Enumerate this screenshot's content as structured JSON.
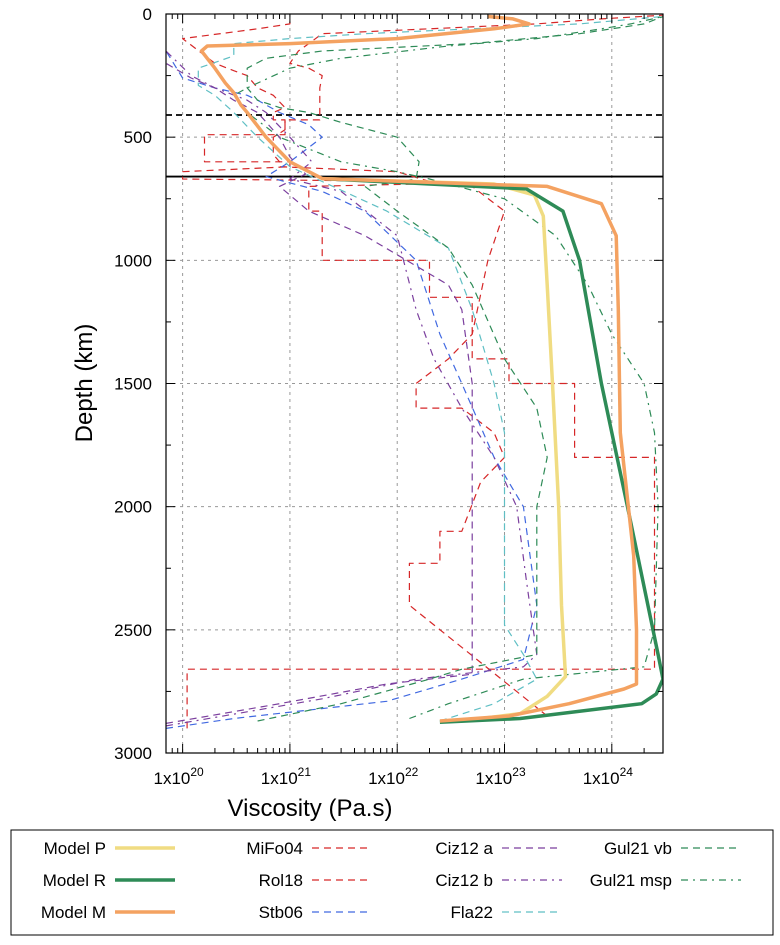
{
  "chart_data": {
    "type": "line",
    "xlabel": "Viscosity (Pa.s)",
    "ylabel": "Depth (km)",
    "xscale": "log",
    "xlim": [
      7e+19,
      3e+24
    ],
    "ylim": [
      3000,
      0
    ],
    "xticks": [
      {
        "value": 1e+20,
        "mantissa": "1x10",
        "exp": "20"
      },
      {
        "value": 1e+21,
        "mantissa": "1x10",
        "exp": "21"
      },
      {
        "value": 1e+22,
        "mantissa": "1x10",
        "exp": "22"
      },
      {
        "value": 1e+23,
        "mantissa": "1x10",
        "exp": "23"
      },
      {
        "value": 1e+24,
        "mantissa": "1x10",
        "exp": "24"
      }
    ],
    "yticks": [
      {
        "value": 0,
        "label": "0"
      },
      {
        "value": 500,
        "label": "500"
      },
      {
        "value": 1000,
        "label": "1000"
      },
      {
        "value": 1500,
        "label": "1500"
      },
      {
        "value": 2000,
        "label": "2000"
      },
      {
        "value": 2500,
        "label": "2500"
      },
      {
        "value": 3000,
        "label": "3000"
      }
    ],
    "grid": true,
    "reference_lines": [
      {
        "depth": 410,
        "style": "dashed",
        "color": "#000000"
      },
      {
        "depth": 660,
        "style": "solid",
        "color": "#000000"
      }
    ],
    "legend": {
      "placement": "bottom",
      "columns": 4
    },
    "series": [
      {
        "name": "Model P",
        "color": "#f0dc82",
        "width": 3.5,
        "dash": "none",
        "points": [
          [
            4e+22,
            2870
          ],
          [
            1.4e+23,
            2840
          ],
          [
            2.5e+23,
            2770
          ],
          [
            3.7e+23,
            2690
          ],
          [
            3.4e+23,
            2400
          ],
          [
            3.2e+23,
            2000
          ],
          [
            2.8e+23,
            1500
          ],
          [
            2.5e+23,
            1100
          ],
          [
            2.3e+23,
            820
          ],
          [
            1.9e+23,
            735
          ],
          [
            8e+22,
            690
          ],
          [
            2e+21,
            668
          ]
        ]
      },
      {
        "name": "Model R",
        "color": "#2e8b57",
        "width": 3.5,
        "dash": "none",
        "points": [
          [
            2.5e+22,
            2875
          ],
          [
            1.4e+23,
            2860
          ],
          [
            1.9e+24,
            2800
          ],
          [
            2.6e+24,
            2760
          ],
          [
            3e+24,
            2700
          ],
          [
            2.7e+24,
            2600
          ],
          [
            1.4e+24,
            2000
          ],
          [
            8e+23,
            1500
          ],
          [
            5e+23,
            1000
          ],
          [
            3.5e+23,
            800
          ],
          [
            1.6e+23,
            710
          ],
          [
            2e+22,
            690
          ],
          [
            2e+21,
            668
          ]
        ]
      },
      {
        "name": "Model M",
        "color": "#f4a261",
        "width": 3.5,
        "dash": "none",
        "points": [
          [
            2.5e+22,
            2870
          ],
          [
            1.1e+23,
            2850
          ],
          [
            4e+23,
            2800
          ],
          [
            1.3e+24,
            2740
          ],
          [
            1.7e+24,
            2720
          ],
          [
            1.7e+24,
            2500
          ],
          [
            1.6e+24,
            2200
          ],
          [
            1.2e+24,
            1700
          ],
          [
            1.15e+24,
            1200
          ],
          [
            1.1e+24,
            900
          ],
          [
            8e+23,
            770
          ],
          [
            2.5e+23,
            700
          ],
          [
            2e+21,
            668
          ],
          [
            1e+21,
            600
          ],
          [
            6e+20,
            500
          ],
          [
            4e+20,
            400
          ],
          [
            3.5e+20,
            370
          ],
          [
            3e+20,
            320
          ],
          [
            2.5e+20,
            280
          ],
          [
            2e+20,
            220
          ],
          [
            1.5e+20,
            150
          ],
          [
            1.7e+20,
            130
          ],
          [
            1e+21,
            120
          ],
          [
            1e+22,
            100
          ],
          [
            8e+22,
            60
          ],
          [
            1.7e+23,
            40
          ],
          [
            1.2e+23,
            20
          ],
          [
            7e+22,
            10
          ]
        ]
      },
      {
        "name": "MiFo04",
        "color": "#d62728",
        "width": 1.2,
        "dash": "7,5",
        "points": [
          [
            1.1e+20,
            2900
          ],
          [
            1.1e+20,
            2660
          ],
          [
            1e+23,
            2660
          ],
          [
            2.5e+24,
            2660
          ],
          [
            2.5e+24,
            2480
          ],
          [
            2.5e+24,
            2000
          ],
          [
            2.5e+24,
            1800
          ],
          [
            4.5e+23,
            1800
          ],
          [
            4.5e+23,
            1500
          ],
          [
            1.1e+23,
            1500
          ],
          [
            1.1e+23,
            1400
          ],
          [
            5e+22,
            1400
          ],
          [
            5e+22,
            1150
          ],
          [
            2e+22,
            1150
          ],
          [
            2e+22,
            1000
          ],
          [
            2e+21,
            1000
          ],
          [
            2e+21,
            800
          ],
          [
            1.5e+21,
            800
          ],
          [
            1.5e+21,
            700
          ],
          [
            1.5e+22,
            690
          ],
          [
            2e+22,
            680
          ],
          [
            1e+22,
            640
          ],
          [
            8e+20,
            620
          ],
          [
            8e+20,
            600
          ],
          [
            7e+20,
            570
          ],
          [
            7e+20,
            500
          ],
          [
            9e+20,
            470
          ],
          [
            9e+20,
            430
          ],
          [
            7e+20,
            430
          ],
          [
            7e+20,
            400
          ],
          [
            9e+20,
            380
          ],
          [
            7e+20,
            330
          ],
          [
            5e+20,
            300
          ],
          [
            4e+20,
            250
          ],
          [
            3e+20,
            230
          ],
          [
            2e+20,
            200
          ],
          [
            1e+20,
            100
          ],
          [
            5e+20,
            60
          ],
          [
            1e+21,
            40
          ],
          [
            1e+21,
            20
          ]
        ]
      },
      {
        "name": "Rol18",
        "color": "#d62728",
        "width": 1.2,
        "dash": "7,5",
        "points": [
          [
            2.5e+23,
            2850
          ],
          [
            1.3e+22,
            2400
          ],
          [
            1.3e+22,
            2230
          ],
          [
            2.5e+22,
            2230
          ],
          [
            2.5e+22,
            2100
          ],
          [
            4e+22,
            2100
          ],
          [
            6e+22,
            1900
          ],
          [
            1e+23,
            1800
          ],
          [
            8e+22,
            1700
          ],
          [
            4e+22,
            1600
          ],
          [
            1.5e+22,
            1600
          ],
          [
            1.5e+22,
            1500
          ],
          [
            3e+22,
            1400
          ],
          [
            5e+22,
            1300
          ],
          [
            7e+22,
            1000
          ],
          [
            1e+23,
            800
          ],
          [
            5e+22,
            700
          ],
          [
            2e+22,
            680
          ],
          [
            1e+20,
            670
          ],
          [
            1e+20,
            640
          ],
          [
            1e+21,
            620
          ],
          [
            1e+21,
            600
          ],
          [
            1.6e+20,
            600
          ],
          [
            1.6e+20,
            490
          ],
          [
            9e+20,
            490
          ],
          [
            9e+20,
            430
          ],
          [
            1.9e+21,
            430
          ],
          [
            1.9e+21,
            300
          ],
          [
            2e+21,
            250
          ],
          [
            1.5e+21,
            220
          ],
          [
            1e+21,
            200
          ],
          [
            1.2e+21,
            150
          ],
          [
            1.5e+21,
            120
          ],
          [
            2e+21,
            80
          ],
          [
            2e+22,
            60
          ],
          [
            2e+23,
            40
          ],
          [
            8e+23,
            20
          ],
          [
            3e+24,
            5
          ]
        ]
      },
      {
        "name": "Stb06",
        "color": "#4169e1",
        "width": 1.2,
        "dash": "7,5",
        "points": [
          [
            7e+19,
            2900
          ],
          [
            3e+20,
            2860
          ],
          [
            8e+21,
            2790
          ],
          [
            4e+22,
            2700
          ],
          [
            1.5e+23,
            2620
          ],
          [
            2e+23,
            2400
          ],
          [
            1.5e+23,
            2000
          ],
          [
            8e+22,
            1800
          ],
          [
            4e+22,
            1500
          ],
          [
            2.5e+22,
            1300
          ],
          [
            1.5e+22,
            1000
          ],
          [
            5e+21,
            800
          ],
          [
            2e+21,
            720
          ],
          [
            6e+20,
            660
          ],
          [
            1e+21,
            600
          ],
          [
            2e+21,
            500
          ],
          [
            1.5e+21,
            450
          ],
          [
            8e+20,
            400
          ],
          [
            5e+20,
            350
          ],
          [
            4e+20,
            330
          ],
          [
            2e+20,
            300
          ],
          [
            1e+20,
            260
          ],
          [
            7e+19,
            150
          ]
        ]
      },
      {
        "name": "Ciz12 a",
        "color": "#7b3f9e",
        "width": 1.2,
        "dash": "7,5",
        "points": [
          [
            7e+19,
            2880
          ],
          [
            8e+20,
            2800
          ],
          [
            8e+21,
            2720
          ],
          [
            5e+22,
            2680
          ],
          [
            5e+22,
            2500
          ],
          [
            5e+22,
            2000
          ],
          [
            5e+22,
            1500
          ],
          [
            4e+22,
            1200
          ],
          [
            3e+22,
            1100
          ],
          [
            5e+21,
            900
          ],
          [
            1.5e+21,
            800
          ],
          [
            8e+20,
            700
          ],
          [
            1.4e+21,
            650
          ],
          [
            1e+21,
            580
          ],
          [
            8e+20,
            500
          ],
          [
            5e+20,
            400
          ],
          [
            3e+20,
            350
          ],
          [
            2e+20,
            300
          ],
          [
            1.2e+20,
            260
          ],
          [
            7e+19,
            200
          ]
        ]
      },
      {
        "name": "Ciz12 b",
        "color": "#7b3f9e",
        "width": 1.2,
        "dash": "7,5,2,5",
        "points": [
          [
            7e+19,
            2890
          ],
          [
            2e+21,
            2780
          ],
          [
            1.5e+22,
            2700
          ],
          [
            1.5e+23,
            2650
          ],
          [
            2e+23,
            2600
          ],
          [
            1.6e+23,
            2300
          ],
          [
            1.3e+23,
            2000
          ],
          [
            8e+22,
            1800
          ],
          [
            4e+22,
            1600
          ],
          [
            2.2e+22,
            1400
          ],
          [
            1.5e+22,
            1200
          ],
          [
            1e+22,
            900
          ],
          [
            3e+21,
            720
          ],
          [
            1e+21,
            670
          ],
          [
            1.6e+21,
            600
          ],
          [
            1e+21,
            500
          ],
          [
            6e+20,
            400
          ],
          [
            4e+20,
            350
          ],
          [
            2e+20,
            300
          ],
          [
            1.2e+20,
            250
          ],
          [
            7e+19,
            150
          ]
        ]
      },
      {
        "name": "Fla22",
        "color": "#5fbfc4",
        "width": 1.2,
        "dash": "7,5",
        "points": [
          [
            2.5e+22,
            2870
          ],
          [
            8e+22,
            2800
          ],
          [
            2e+23,
            2700
          ],
          [
            1.5e+23,
            2600
          ],
          [
            1e+23,
            2480
          ],
          [
            1e+23,
            2000
          ],
          [
            1e+23,
            1700
          ],
          [
            8e+22,
            1500
          ],
          [
            5e+22,
            1200
          ],
          [
            3e+22,
            950
          ],
          [
            8e+21,
            800
          ],
          [
            2e+21,
            680
          ],
          [
            1e+21,
            620
          ],
          [
            5e+20,
            500
          ],
          [
            3e+20,
            400
          ],
          [
            2e+20,
            330
          ],
          [
            1.4e+20,
            290
          ],
          [
            1.4e+20,
            220
          ],
          [
            3e+20,
            170
          ],
          [
            3e+20,
            120
          ],
          [
            1e+21,
            100
          ],
          [
            5e+21,
            80
          ],
          [
            5e+22,
            60
          ],
          [
            5e+23,
            40
          ],
          [
            3e+24,
            10
          ]
        ]
      },
      {
        "name": "Gul21 vb",
        "color": "#2e8b57",
        "width": 1.2,
        "dash": "7,5",
        "points": [
          [
            5e+20,
            2870
          ],
          [
            3e+21,
            2800
          ],
          [
            2e+22,
            2700
          ],
          [
            4e+22,
            2660
          ],
          [
            2e+23,
            2600
          ],
          [
            2e+23,
            2300
          ],
          [
            2e+23,
            2000
          ],
          [
            2.5e+23,
            1800
          ],
          [
            2e+23,
            1600
          ],
          [
            1e+23,
            1400
          ],
          [
            5e+22,
            1100
          ],
          [
            3e+22,
            950
          ],
          [
            1e+22,
            800
          ],
          [
            5e+21,
            700
          ],
          [
            1.5e+22,
            670
          ],
          [
            1.6e+22,
            600
          ],
          [
            1e+22,
            500
          ],
          [
            3e+21,
            440
          ],
          [
            1.5e+21,
            400
          ],
          [
            8e+20,
            380
          ],
          [
            5e+20,
            350
          ],
          [
            4e+20,
            300
          ],
          [
            4e+20,
            220
          ],
          [
            6e+20,
            180
          ],
          [
            2e+21,
            150
          ],
          [
            5e+22,
            120
          ],
          [
            5e+23,
            80
          ],
          [
            2e+24,
            40
          ],
          [
            3e+24,
            10
          ]
        ]
      },
      {
        "name": "Gul21 msp",
        "color": "#2e8b57",
        "width": 1.2,
        "dash": "7,5,2,5",
        "points": [
          [
            1.3e+22,
            2860
          ],
          [
            3e+22,
            2800
          ],
          [
            1.5e+23,
            2700
          ],
          [
            2e+24,
            2650
          ],
          [
            2.5e+24,
            2500
          ],
          [
            2.7e+24,
            2000
          ],
          [
            2.5e+24,
            1700
          ],
          [
            2e+24,
            1500
          ],
          [
            1e+24,
            1300
          ],
          [
            6e+23,
            1100
          ],
          [
            3e+23,
            900
          ],
          [
            1e+23,
            750
          ],
          [
            2e+22,
            670
          ],
          [
            1e+22,
            640
          ],
          [
            3e+21,
            600
          ],
          [
            8e+20,
            500
          ],
          [
            4e+20,
            400
          ],
          [
            3e+20,
            330
          ],
          [
            4e+20,
            300
          ],
          [
            1e+21,
            220
          ],
          [
            3e+21,
            180
          ],
          [
            3e+22,
            130
          ],
          [
            2e+23,
            100
          ],
          [
            8e+23,
            60
          ],
          [
            1.5e+24,
            40
          ],
          [
            3e+24,
            10
          ]
        ]
      }
    ]
  }
}
